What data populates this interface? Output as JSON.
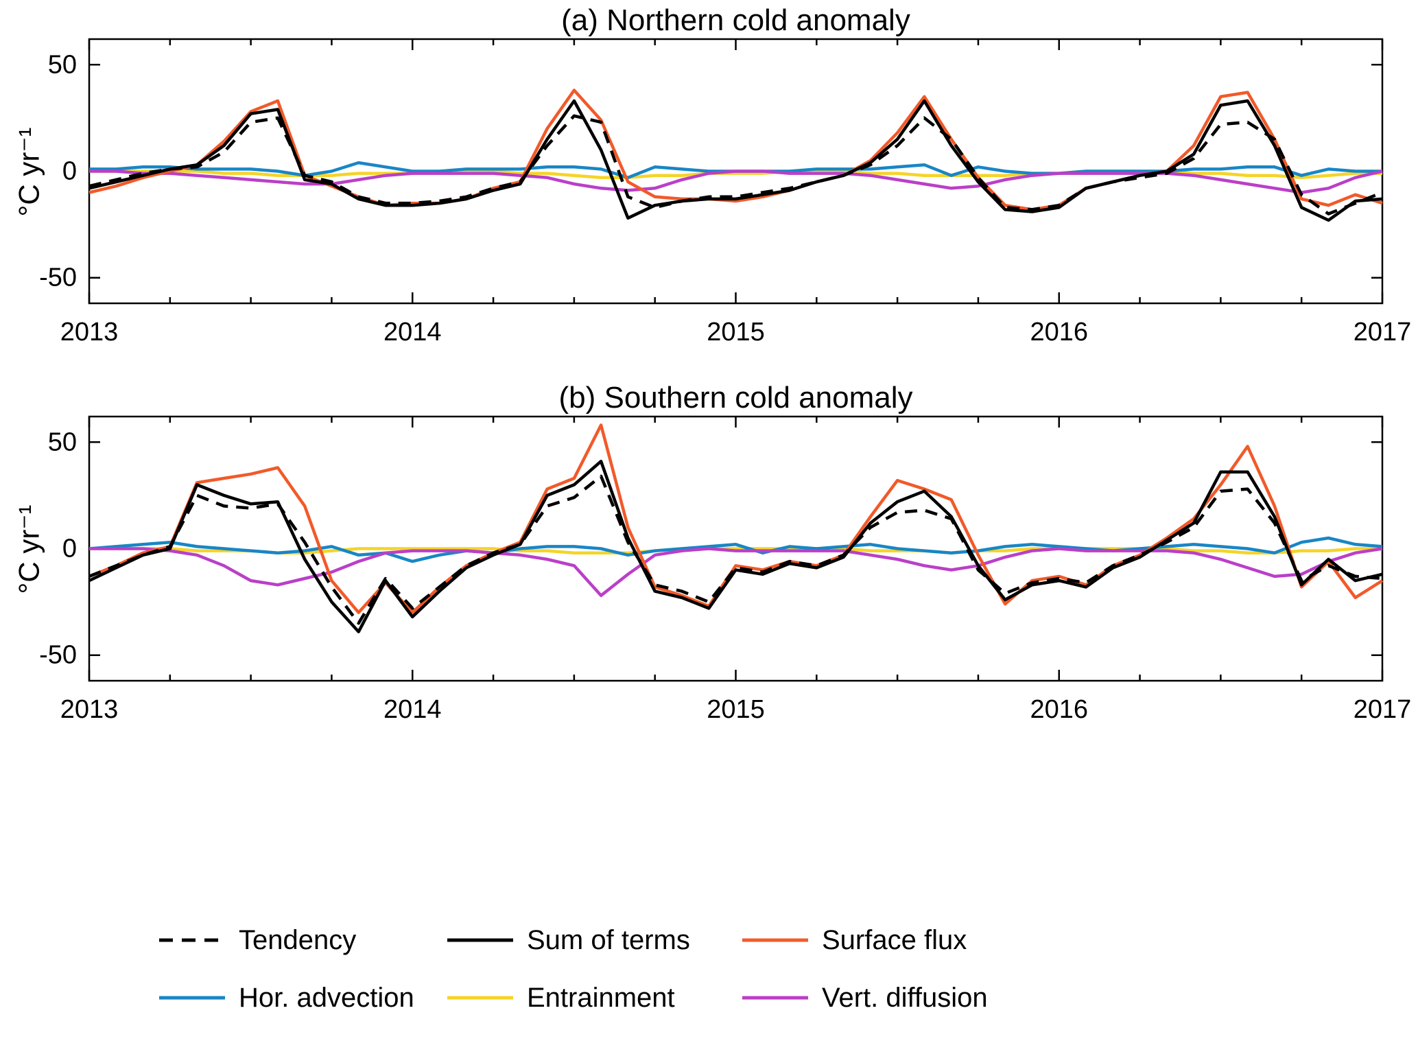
{
  "chart_data": [
    {
      "type": "line",
      "title": "(a) Northern cold anomaly",
      "ylabel": "°C yr⁻¹",
      "x_start": 2013,
      "x_step_years": 0.0833333,
      "xlim": [
        2013,
        2017
      ],
      "ylim": [
        -62,
        62
      ],
      "x_ticks": [
        2013,
        2014,
        2015,
        2016,
        2017
      ],
      "y_ticks": [
        -50,
        0,
        50
      ],
      "grid": false,
      "series": [
        {
          "name": "Tendency",
          "color": "#000000",
          "dash": "18 12",
          "values": [
            -7,
            -4,
            -1,
            1,
            2,
            9,
            23,
            25,
            -2,
            -5,
            -12,
            -15,
            -15,
            -14,
            -12,
            -8,
            -5,
            12,
            26,
            23,
            -12,
            -17,
            -14,
            -12,
            -12,
            -10,
            -8,
            -5,
            -2,
            3,
            12,
            25,
            15,
            -3,
            -17,
            -18,
            -16,
            -8,
            -5,
            -3,
            -1,
            6,
            22,
            23,
            15,
            -11,
            -20,
            -15,
            -10
          ]
        },
        {
          "name": "Sum of terms",
          "color": "#000000",
          "dash": "",
          "values": [
            -8,
            -5,
            -2,
            1,
            3,
            12,
            27,
            29,
            -4,
            -6,
            -13,
            -16,
            -16,
            -15,
            -13,
            -9,
            -6,
            15,
            33,
            10,
            -22,
            -16,
            -14,
            -13,
            -13,
            -11,
            -9,
            -5,
            -2,
            4,
            15,
            33,
            12,
            -5,
            -18,
            -19,
            -17,
            -8,
            -5,
            -2,
            0,
            8,
            31,
            33,
            12,
            -17,
            -23,
            -14,
            -13
          ]
        },
        {
          "name": "Surface flux",
          "color": "#f15a29",
          "dash": "",
          "values": [
            -10,
            -7,
            -3,
            0,
            3,
            14,
            28,
            33,
            -2,
            -7,
            -12,
            -16,
            -15,
            -15,
            -13,
            -8,
            -5,
            20,
            38,
            24,
            -5,
            -12,
            -13,
            -13,
            -14,
            -12,
            -9,
            -5,
            -2,
            5,
            18,
            35,
            15,
            -3,
            -16,
            -18,
            -16,
            -8,
            -5,
            -2,
            0,
            12,
            35,
            37,
            15,
            -13,
            -16,
            -11,
            -15
          ]
        },
        {
          "name": "Hor. advection",
          "color": "#1886c5",
          "dash": "",
          "values": [
            1,
            1,
            2,
            2,
            1,
            1,
            1,
            0,
            -2,
            0,
            4,
            2,
            0,
            0,
            1,
            1,
            1,
            2,
            2,
            1,
            -3,
            2,
            1,
            0,
            0,
            0,
            0,
            1,
            1,
            1,
            2,
            3,
            -2,
            2,
            0,
            -1,
            -1,
            0,
            0,
            0,
            0,
            1,
            1,
            2,
            2,
            -2,
            1,
            0,
            0
          ]
        },
        {
          "name": "Entrainment",
          "color": "#f5d428",
          "dash": "",
          "values": [
            0,
            0,
            0,
            0,
            0,
            -1,
            -1,
            -2,
            -2,
            -2,
            -1,
            -1,
            -1,
            0,
            0,
            0,
            -1,
            -1,
            -2,
            -3,
            -3,
            -2,
            -2,
            -1,
            -1,
            -1,
            0,
            0,
            0,
            -1,
            -1,
            -2,
            -2,
            -2,
            -2,
            -1,
            -1,
            0,
            0,
            0,
            0,
            -1,
            -1,
            -2,
            -2,
            -3,
            -2,
            -1,
            -1
          ]
        },
        {
          "name": "Vert. diffusion",
          "color": "#ba3fc8",
          "dash": "",
          "values": [
            0,
            0,
            -1,
            -1,
            -2,
            -3,
            -4,
            -5,
            -6,
            -6,
            -4,
            -2,
            -1,
            -1,
            -1,
            -1,
            -2,
            -3,
            -6,
            -8,
            -9,
            -8,
            -4,
            -1,
            0,
            0,
            -1,
            -1,
            -1,
            -2,
            -4,
            -6,
            -8,
            -7,
            -4,
            -2,
            -1,
            -1,
            -1,
            -1,
            -1,
            -2,
            -4,
            -6,
            -8,
            -10,
            -8,
            -3,
            0
          ]
        }
      ]
    },
    {
      "type": "line",
      "title": "(b) Southern cold anomaly",
      "ylabel": "°C yr⁻¹",
      "x_start": 2013,
      "x_step_years": 0.0833333,
      "xlim": [
        2013,
        2017
      ],
      "ylim": [
        -62,
        62
      ],
      "x_ticks": [
        2013,
        2014,
        2015,
        2016,
        2017
      ],
      "y_ticks": [
        -50,
        0,
        50
      ],
      "grid": false,
      "series": [
        {
          "name": "Tendency",
          "color": "#000000",
          "dash": "18 12",
          "values": [
            -13,
            -8,
            -3,
            1,
            25,
            20,
            19,
            21,
            3,
            -18,
            -35,
            -14,
            -28,
            -18,
            -8,
            -2,
            2,
            20,
            24,
            34,
            3,
            -17,
            -20,
            -25,
            -9,
            -11,
            -6,
            -8,
            -3,
            10,
            17,
            18,
            14,
            -10,
            -21,
            -16,
            -14,
            -16,
            -8,
            -3,
            3,
            10,
            27,
            28,
            12,
            -15,
            -8,
            -13,
            -14
          ]
        },
        {
          "name": "Sum of terms",
          "color": "#000000",
          "dash": "",
          "values": [
            -15,
            -9,
            -3,
            0,
            30,
            25,
            21,
            22,
            -5,
            -25,
            -39,
            -15,
            -32,
            -20,
            -9,
            -3,
            2,
            25,
            30,
            41,
            5,
            -20,
            -23,
            -28,
            -10,
            -12,
            -7,
            -9,
            -4,
            12,
            22,
            27,
            15,
            -8,
            -24,
            -17,
            -15,
            -18,
            -9,
            -4,
            4,
            12,
            36,
            36,
            15,
            -17,
            -5,
            -15,
            -12
          ]
        },
        {
          "name": "Surface flux",
          "color": "#f15a29",
          "dash": "",
          "values": [
            -13,
            -8,
            -2,
            1,
            31,
            33,
            35,
            38,
            20,
            -15,
            -30,
            -16,
            -30,
            -18,
            -8,
            -2,
            3,
            28,
            33,
            58,
            10,
            -18,
            -22,
            -27,
            -8,
            -10,
            -6,
            -8,
            -3,
            15,
            32,
            28,
            23,
            -3,
            -26,
            -15,
            -13,
            -17,
            -8,
            -3,
            5,
            14,
            30,
            48,
            20,
            -18,
            -6,
            -23,
            -15
          ]
        },
        {
          "name": "Hor. advection",
          "color": "#1886c5",
          "dash": "",
          "values": [
            0,
            1,
            2,
            3,
            1,
            0,
            -1,
            -2,
            -1,
            1,
            -3,
            -2,
            -6,
            -3,
            -1,
            -2,
            0,
            1,
            1,
            0,
            -3,
            -1,
            0,
            1,
            2,
            -2,
            1,
            0,
            1,
            2,
            0,
            -1,
            -2,
            -1,
            1,
            2,
            1,
            0,
            -1,
            0,
            1,
            2,
            1,
            0,
            -2,
            3,
            5,
            2,
            1
          ]
        },
        {
          "name": "Entrainment",
          "color": "#f5d428",
          "dash": "",
          "values": [
            0,
            0,
            0,
            0,
            -1,
            -1,
            -1,
            -2,
            -2,
            -1,
            0,
            0,
            0,
            0,
            0,
            0,
            -1,
            -1,
            -2,
            -2,
            -2,
            -1,
            0,
            0,
            0,
            0,
            0,
            0,
            0,
            -1,
            -1,
            -1,
            -2,
            -1,
            -1,
            0,
            0,
            0,
            0,
            0,
            0,
            -1,
            -1,
            -2,
            -2,
            -1,
            -1,
            0,
            0
          ]
        },
        {
          "name": "Vert. diffusion",
          "color": "#ba3fc8",
          "dash": "",
          "values": [
            0,
            0,
            0,
            -1,
            -3,
            -8,
            -15,
            -17,
            -14,
            -11,
            -6,
            -2,
            -1,
            -1,
            -1,
            -2,
            -3,
            -5,
            -8,
            -22,
            -12,
            -3,
            -1,
            0,
            -1,
            -1,
            -1,
            -1,
            -1,
            -3,
            -5,
            -8,
            -10,
            -8,
            -4,
            -1,
            0,
            -1,
            -1,
            -1,
            -1,
            -2,
            -5,
            -9,
            -13,
            -12,
            -6,
            -2,
            0
          ]
        }
      ]
    }
  ],
  "legend": {
    "items": [
      {
        "label": "Tendency",
        "color": "#000000",
        "dash": true
      },
      {
        "label": "Sum of terms",
        "color": "#000000",
        "dash": false
      },
      {
        "label": "Surface flux",
        "color": "#f15a29",
        "dash": false
      },
      {
        "label": "Hor. advection",
        "color": "#1886c5",
        "dash": false
      },
      {
        "label": "Entrainment",
        "color": "#f5d428",
        "dash": false
      },
      {
        "label": "Vert. diffusion",
        "color": "#ba3fc8",
        "dash": false
      }
    ]
  }
}
